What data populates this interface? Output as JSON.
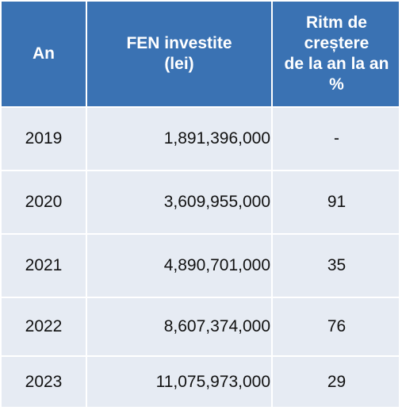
{
  "chart_data": {
    "type": "table",
    "columns": [
      "An",
      "FEN investite\n(lei)",
      "Ritm de\ncreștere\nde la an la an\n%"
    ],
    "rows": [
      [
        "2019",
        "1,891,396,000",
        "-"
      ],
      [
        "2020",
        "3,609,955,000",
        "91"
      ],
      [
        "2021",
        "4,890,701,000",
        "35"
      ],
      [
        "2022",
        "8,607,374,000",
        "76"
      ],
      [
        "2023",
        "11,075,973,000",
        "29"
      ]
    ]
  },
  "colors": {
    "header_bg": "#3a72b3",
    "header_text": "#ffffff",
    "body_bg": "#e6ebf3",
    "body_text": "#111111"
  }
}
